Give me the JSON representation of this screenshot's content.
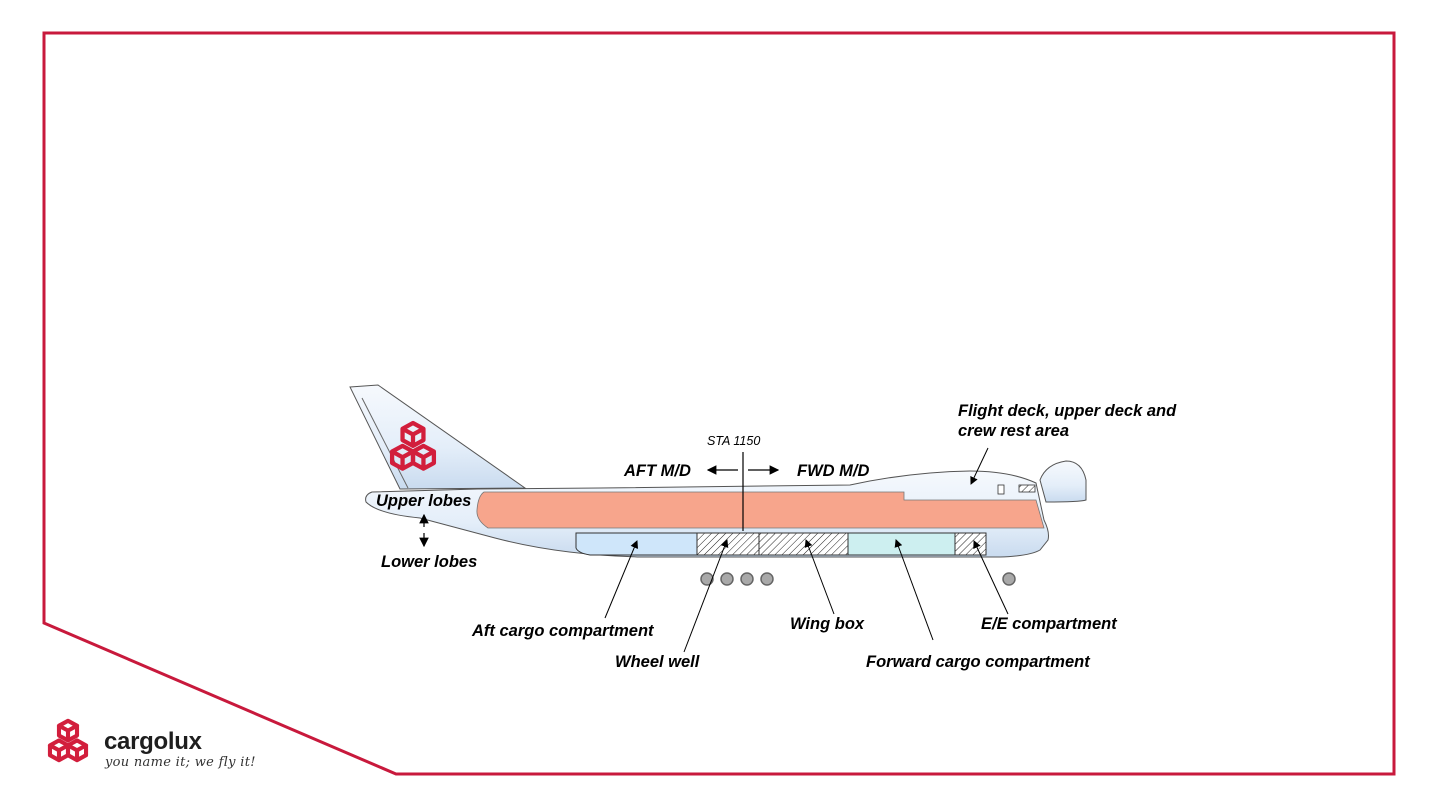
{
  "labels": {
    "flight_deck_line1": "Flight deck, upper deck and",
    "flight_deck_line2": "crew rest area",
    "sta": "STA 1150",
    "aft_md": "AFT M/D",
    "fwd_md": "FWD M/D",
    "upper_lobes": "Upper lobes",
    "lower_lobes": "Lower lobes",
    "aft_cargo": "Aft cargo compartment",
    "wheel_well": "Wheel well",
    "wing_box": "Wing box",
    "forward_cargo": "Forward cargo compartment",
    "ee_compartment": "E/E compartment"
  },
  "brand": {
    "name": "cargolux",
    "tagline": "you name it; we fly it!"
  },
  "colors": {
    "frame": "#c8193c",
    "logo": "#d21e3c",
    "main_deck": "#f7a58c",
    "fuselage": "#e8f1fb",
    "aft_cargo": "#cfe6fa",
    "forward_cargo": "#cdeff0",
    "wheel": "#a9a9a9"
  }
}
